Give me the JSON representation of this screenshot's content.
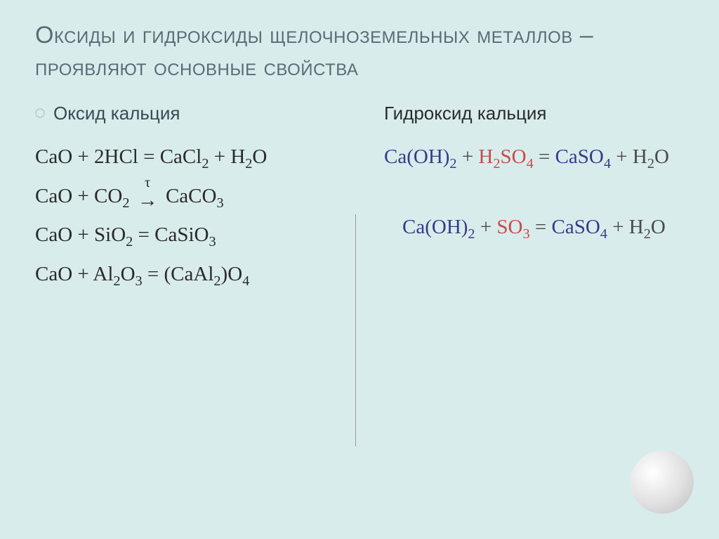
{
  "slide": {
    "background_color": "#d9ecec",
    "title": "Оксиды и гидроксиды щелочноземельных металлов – проявляют основные свойства",
    "title_color": "#5a6b75"
  },
  "left": {
    "heading": "Оксид кальция",
    "equations": [
      {
        "plain": "CaO + 2HCl = CaCl2 + H2O",
        "parts": [
          "CaO + 2HCl = CaCl",
          "2",
          " + H",
          "2",
          "O"
        ]
      },
      {
        "plain": "CaO + CO2 → CaCO3 (τ)",
        "parts_tau": true
      },
      {
        "plain": "CaO + SiO2 = CaSiO3",
        "parts": [
          "CaO + SiO",
          "2",
          " = CaSiO",
          "3",
          ""
        ]
      },
      {
        "plain": "CaO + Al2O3 = (CaAl2)O4",
        "parts": [
          "CaO + Al",
          "2",
          "O",
          "3",
          " = (CaAl",
          "2",
          ")O",
          "4",
          ""
        ]
      }
    ]
  },
  "right": {
    "heading": "Гидроксид  кальция",
    "equations": [
      {
        "segments": [
          {
            "t": "Ca(OH)",
            "c": "c1"
          },
          {
            "t": "2",
            "c": "c1",
            "sub": true
          },
          {
            "t": " + ",
            "c": "c3"
          },
          {
            "t": "H",
            "c": "c2"
          },
          {
            "t": "2",
            "c": "c2",
            "sub": true
          },
          {
            "t": "SO",
            "c": "c2"
          },
          {
            "t": "4",
            "c": "c2",
            "sub": true
          },
          {
            "t": " = ",
            "c": "c3"
          },
          {
            "t": "CaSO",
            "c": "c1"
          },
          {
            "t": "4",
            "c": "c1",
            "sub": true
          },
          {
            "t": " + H",
            "c": "c3"
          },
          {
            "t": "2",
            "c": "c3",
            "sub": true
          },
          {
            "t": "O",
            "c": "c3"
          }
        ]
      },
      {
        "indent": true,
        "segments": [
          {
            "t": "Ca(OH)",
            "c": "c1"
          },
          {
            "t": "2",
            "c": "c1",
            "sub": true
          },
          {
            "t": " + ",
            "c": "c3"
          },
          {
            "t": "SO",
            "c": "c2"
          },
          {
            "t": "3",
            "c": "c2",
            "sub": true
          },
          {
            "t": " = ",
            "c": "c3"
          },
          {
            "t": "CaSO",
            "c": "c1"
          },
          {
            "t": "4",
            "c": "c1",
            "sub": true
          },
          {
            "t": " + H",
            "c": "c3"
          },
          {
            "t": "2",
            "c": "c3",
            "sub": true
          },
          {
            "t": "O",
            "c": "c3"
          }
        ]
      }
    ],
    "colors": {
      "base": "#3a3a8a",
      "acid": "#c94a4a",
      "neutral": "#4a4a4a"
    }
  }
}
